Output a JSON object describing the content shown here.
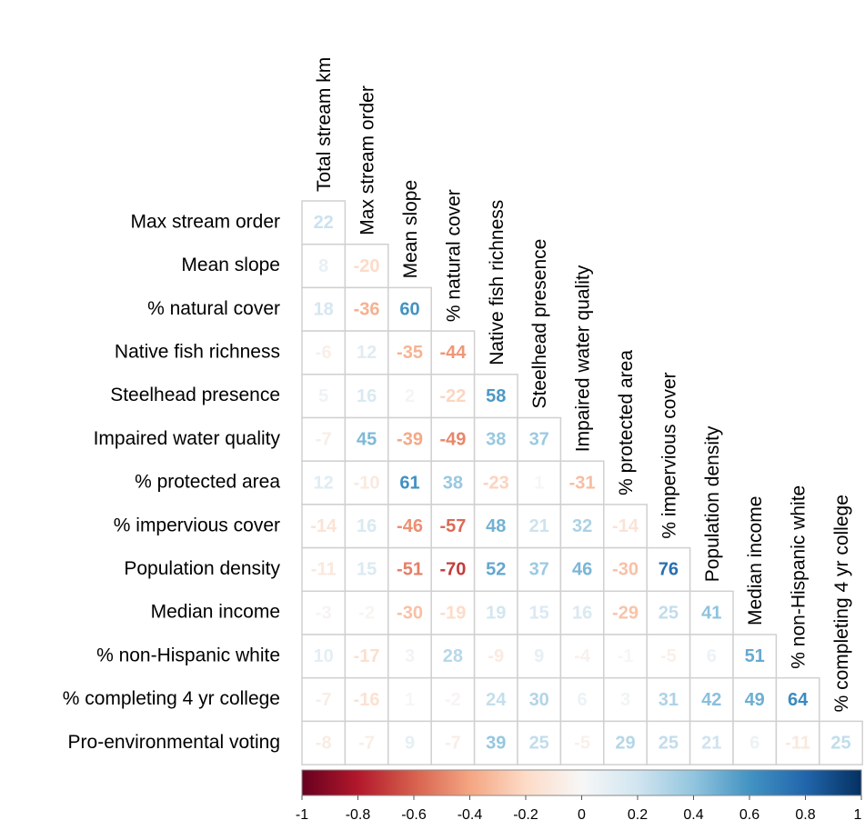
{
  "chart_data": {
    "type": "heatmap",
    "columns": [
      "Total stream km",
      "Max stream order",
      "Mean slope",
      "% natural cover",
      "Native fish richness",
      "Steelhead presence",
      "Impaired water quality",
      "% protected area",
      "% impervious cover",
      "Population density",
      "Median income",
      "% non-Hispanic white",
      "% completing 4 yr college"
    ],
    "rows": [
      "Max stream order",
      "Mean slope",
      "% natural cover",
      "Native fish richness",
      "Steelhead presence",
      "Impaired water quality",
      "% protected area",
      "% impervious cover",
      "Population density",
      "Median income",
      "% non-Hispanic white",
      "% completing 4 yr college",
      "Pro-environmental voting"
    ],
    "values": [
      [
        0.22,
        null,
        null,
        null,
        null,
        null,
        null,
        null,
        null,
        null,
        null,
        null,
        null
      ],
      [
        0.08,
        -0.2,
        null,
        null,
        null,
        null,
        null,
        null,
        null,
        null,
        null,
        null,
        null
      ],
      [
        0.18,
        -0.36,
        0.6,
        null,
        null,
        null,
        null,
        null,
        null,
        null,
        null,
        null,
        null
      ],
      [
        -0.06,
        0.12,
        -0.35,
        -0.44,
        null,
        null,
        null,
        null,
        null,
        null,
        null,
        null,
        null
      ],
      [
        0.05,
        0.16,
        0.02,
        -0.22,
        0.58,
        null,
        null,
        null,
        null,
        null,
        null,
        null,
        null
      ],
      [
        -0.07,
        0.45,
        -0.39,
        -0.49,
        0.38,
        0.37,
        null,
        null,
        null,
        null,
        null,
        null,
        null
      ],
      [
        0.12,
        -0.1,
        0.61,
        0.38,
        -0.23,
        0.01,
        -0.31,
        null,
        null,
        null,
        null,
        null,
        null
      ],
      [
        -0.14,
        0.16,
        -0.46,
        -0.57,
        0.48,
        0.21,
        0.32,
        -0.14,
        null,
        null,
        null,
        null,
        null
      ],
      [
        -0.11,
        0.15,
        -0.51,
        -0.7,
        0.52,
        0.37,
        0.46,
        -0.3,
        0.76,
        null,
        null,
        null,
        null
      ],
      [
        -0.03,
        -0.02,
        -0.3,
        -0.19,
        0.19,
        0.15,
        0.16,
        -0.29,
        0.25,
        0.41,
        null,
        null,
        null
      ],
      [
        0.1,
        -0.17,
        0.03,
        0.28,
        -0.09,
        0.09,
        -0.04,
        -0.01,
        -0.05,
        0.06,
        0.51,
        null,
        null
      ],
      [
        -0.07,
        -0.16,
        0.01,
        -0.02,
        0.24,
        0.3,
        0.06,
        0.03,
        0.31,
        0.42,
        0.49,
        0.64,
        null
      ],
      [
        -0.08,
        -0.07,
        0.09,
        -0.07,
        0.39,
        0.25,
        -0.05,
        0.29,
        0.25,
        0.21,
        0.06,
        -0.11,
        0.25
      ]
    ],
    "value_labels": [
      [
        "22",
        null,
        null,
        null,
        null,
        null,
        null,
        null,
        null,
        null,
        null,
        null,
        null
      ],
      [
        "8",
        "-20",
        null,
        null,
        null,
        null,
        null,
        null,
        null,
        null,
        null,
        null,
        null
      ],
      [
        "18",
        "-36",
        "60",
        null,
        null,
        null,
        null,
        null,
        null,
        null,
        null,
        null,
        null
      ],
      [
        "-6",
        "12",
        "-35",
        "-44",
        null,
        null,
        null,
        null,
        null,
        null,
        null,
        null,
        null
      ],
      [
        "5",
        "16",
        "2",
        "-22",
        "58",
        null,
        null,
        null,
        null,
        null,
        null,
        null,
        null
      ],
      [
        "-7",
        "45",
        "-39",
        "-49",
        "38",
        "37",
        null,
        null,
        null,
        null,
        null,
        null,
        null
      ],
      [
        "12",
        "-10",
        "61",
        "38",
        "-23",
        "1",
        "-31",
        null,
        null,
        null,
        null,
        null,
        null
      ],
      [
        "-14",
        "16",
        "-46",
        "-57",
        "48",
        "21",
        "32",
        "-14",
        null,
        null,
        null,
        null,
        null
      ],
      [
        "-11",
        "15",
        "-51",
        "-70",
        "52",
        "37",
        "46",
        "-30",
        "76",
        null,
        null,
        null,
        null
      ],
      [
        "-3",
        "-2",
        "-30",
        "-19",
        "19",
        "15",
        "16",
        "-29",
        "25",
        "41",
        null,
        null,
        null
      ],
      [
        "10",
        "-17",
        "3",
        "28",
        "-9",
        "9",
        "-4",
        "-1",
        "-5",
        "6",
        "51",
        null,
        null
      ],
      [
        "-7",
        "-16",
        "1",
        "-2",
        "24",
        "30",
        "6",
        "3",
        "31",
        "42",
        "49",
        "64",
        null
      ],
      [
        "-8",
        "-7",
        "9",
        "-7",
        "39",
        "25",
        "-5",
        "29",
        "25",
        "21",
        "6",
        "-11",
        "25"
      ]
    ],
    "clim": [
      -1,
      1
    ],
    "cticks": [
      -1,
      -0.8,
      -0.6,
      -0.4,
      -0.2,
      0,
      0.2,
      0.4,
      0.6,
      0.8,
      1
    ],
    "colorscale": [
      "#67001f",
      "#b2182b",
      "#d6604d",
      "#f4a582",
      "#fddbc7",
      "#f7f7f7",
      "#d1e5f0",
      "#92c5de",
      "#4393c3",
      "#2166ac",
      "#053061"
    ]
  }
}
